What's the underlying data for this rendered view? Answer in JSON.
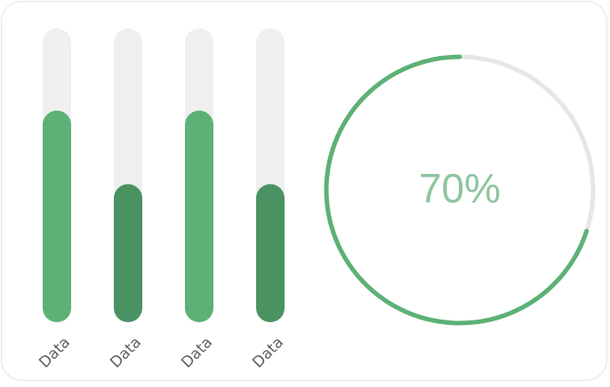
{
  "chart_data": [
    {
      "type": "bar",
      "categories": [
        "Data",
        "Data",
        "Data",
        "Data"
      ],
      "values": [
        72,
        47,
        72,
        47
      ],
      "ylim": [
        0,
        100
      ],
      "bar_colors": [
        "#5cb176",
        "#4b9262",
        "#5cb176",
        "#4b9262"
      ],
      "track_color": "#efefef"
    },
    {
      "type": "pie",
      "label": "70%",
      "values": [
        70,
        30
      ],
      "colors": [
        "#5cb176",
        "#e6e6e6"
      ],
      "label_color": "#8cc59f"
    }
  ]
}
